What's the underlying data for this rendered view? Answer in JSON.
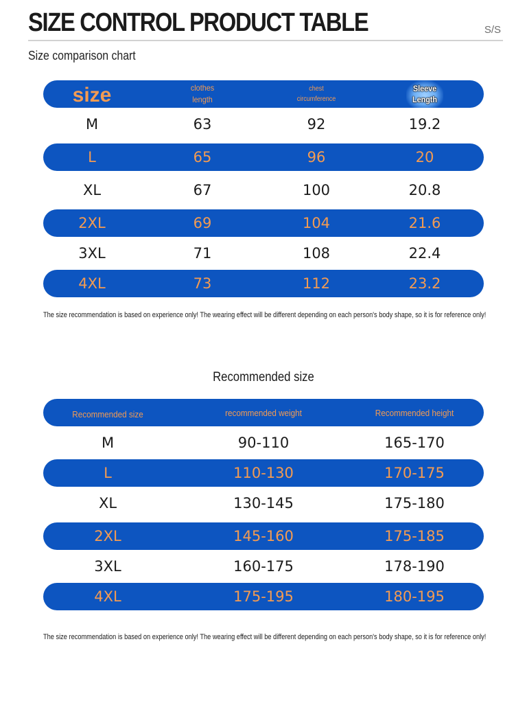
{
  "header": {
    "title": "SIZE CONTROL PRODUCT TABLE",
    "code": "S/S",
    "subtitle": "Size comparison chart"
  },
  "size_chart": {
    "headers": {
      "size": "size",
      "length": [
        "clothes",
        "length"
      ],
      "chest": [
        "chest",
        "circumference"
      ],
      "sleeve": [
        "Sleeve",
        "Length"
      ]
    },
    "rows": [
      {
        "size": "M",
        "length": "63",
        "chest": "92",
        "sleeve": "19.2"
      },
      {
        "size": "L",
        "length": "65",
        "chest": "96",
        "sleeve": "20"
      },
      {
        "size": "XL",
        "length": "67",
        "chest": "100",
        "sleeve": "20.8"
      },
      {
        "size": "2XL",
        "length": "69",
        "chest": "104",
        "sleeve": "21.6"
      },
      {
        "size": "3XL",
        "length": "71",
        "chest": "108",
        "sleeve": "22.4"
      },
      {
        "size": "4XL",
        "length": "73",
        "chest": "112",
        "sleeve": "23.2"
      }
    ],
    "note": "The size recommendation is based on experience only! The wearing effect will be different depending on each person's body shape, so it is for reference only!"
  },
  "recommended": {
    "title": "Recommended size",
    "headers": {
      "size": "Recommended size",
      "weight": "recommended weight",
      "height": "Recommended height"
    },
    "rows": [
      {
        "size": "M",
        "weight": "90-110",
        "height": "165-170"
      },
      {
        "size": "L",
        "weight": "110-130",
        "height": "170-175"
      },
      {
        "size": "XL",
        "weight": "130-145",
        "height": "175-180"
      },
      {
        "size": "2XL",
        "weight": "145-160",
        "height": "175-185"
      },
      {
        "size": "3XL",
        "weight": "160-175",
        "height": "178-190"
      },
      {
        "size": "4XL",
        "weight": "175-195",
        "height": "180-195"
      }
    ],
    "note": "The size recommendation is based on experience only! The wearing effect will be different depending on each person's body shape, so it is for reference only!"
  },
  "colors": {
    "band_blue": "#0d55c0",
    "band_text_orange": "#f39b52",
    "text_dark": "#1b1b1b"
  }
}
